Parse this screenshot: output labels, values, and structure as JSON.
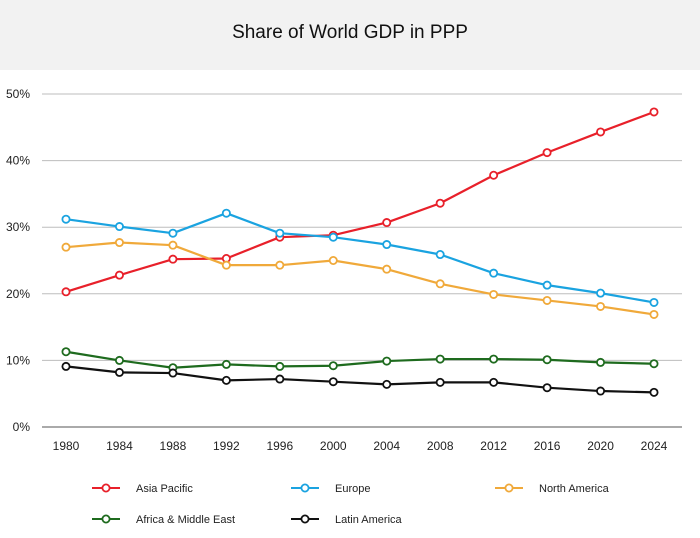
{
  "chart_data": {
    "type": "line",
    "title": "Share of World GDP in PPP",
    "xlabel": "",
    "ylabel": "",
    "x": [
      1980,
      1984,
      1988,
      1992,
      1996,
      2000,
      2004,
      2008,
      2012,
      2016,
      2020,
      2024
    ],
    "ylim": [
      0,
      50
    ],
    "y_ticks": [
      "0%",
      "10%",
      "20%",
      "30%",
      "40%",
      "50%"
    ],
    "grid": "horizontal",
    "legend_position": "bottom",
    "series": [
      {
        "name": "Asia Pacific",
        "color": "#e8202a",
        "values": [
          20.3,
          22.8,
          25.2,
          25.3,
          28.5,
          28.8,
          30.7,
          33.6,
          37.8,
          41.2,
          44.3,
          47.3
        ]
      },
      {
        "name": "Europe",
        "color": "#1aa3e0",
        "values": [
          31.2,
          30.1,
          29.1,
          32.1,
          29.1,
          28.5,
          27.4,
          25.9,
          23.1,
          21.3,
          20.1,
          18.7
        ]
      },
      {
        "name": "North America",
        "color": "#f0a93a",
        "values": [
          27.0,
          27.7,
          27.3,
          24.3,
          24.3,
          25.0,
          23.7,
          21.5,
          19.9,
          19.0,
          18.1,
          16.9
        ]
      },
      {
        "name": "Africa & Middle East",
        "color": "#1e6b1e",
        "values": [
          11.3,
          10.0,
          8.9,
          9.4,
          9.1,
          9.2,
          9.9,
          10.2,
          10.2,
          10.1,
          9.7,
          9.5
        ]
      },
      {
        "name": "Latin America",
        "color": "#111111",
        "values": [
          9.1,
          8.2,
          8.1,
          7.0,
          7.2,
          6.8,
          6.4,
          6.7,
          6.7,
          5.9,
          5.4,
          5.2
        ]
      }
    ]
  }
}
